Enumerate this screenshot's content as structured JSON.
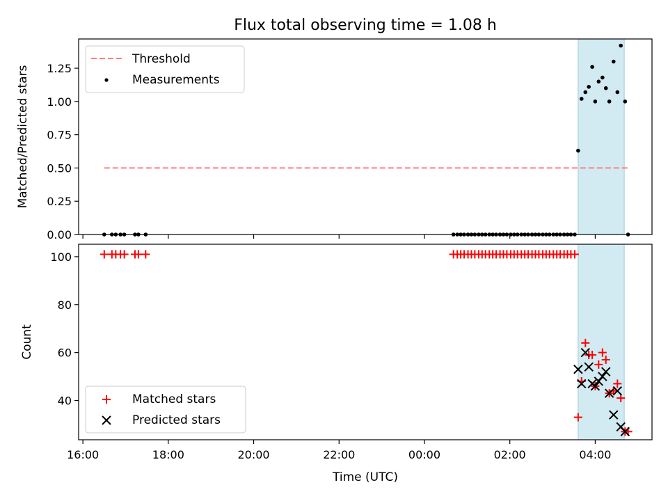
{
  "chart_data": [
    {
      "type": "scatter",
      "title": "Flux total observing time = 1.08 h",
      "ylabel": "Matched/Predicted stars",
      "xlabel": "",
      "x_unit": "hours since 16:00 UTC",
      "xlim": [
        -0.1,
        13.33
      ],
      "ylim": [
        0,
        1.47
      ],
      "yticks": [
        0.0,
        0.25,
        0.5,
        0.75,
        1.0,
        1.25
      ],
      "ytick_labels": [
        "0.00",
        "0.25",
        "0.50",
        "0.75",
        "1.00",
        "1.25"
      ],
      "xticks": [
        0,
        2,
        4,
        6,
        8,
        10,
        12
      ],
      "shaded_region": {
        "x": [
          11.6,
          12.68
        ],
        "color": "#add8e6"
      },
      "threshold": {
        "name": "Threshold",
        "y": 0.5,
        "x": [
          0.5,
          12.8
        ],
        "color": "#ff7f7f"
      },
      "series": [
        {
          "name": "Measurements",
          "color": "#000000",
          "points": [
            [
              0.5,
              0
            ],
            [
              0.68,
              0
            ],
            [
              0.77,
              0
            ],
            [
              0.88,
              0
            ],
            [
              0.97,
              0
            ],
            [
              1.22,
              0
            ],
            [
              1.3,
              0
            ],
            [
              1.47,
              0
            ],
            [
              8.68,
              0
            ],
            [
              8.77,
              0
            ],
            [
              8.85,
              0
            ],
            [
              8.93,
              0
            ],
            [
              9.02,
              0
            ],
            [
              9.1,
              0
            ],
            [
              9.18,
              0
            ],
            [
              9.27,
              0
            ],
            [
              9.35,
              0
            ],
            [
              9.43,
              0
            ],
            [
              9.52,
              0
            ],
            [
              9.6,
              0
            ],
            [
              9.68,
              0
            ],
            [
              9.77,
              0
            ],
            [
              9.85,
              0
            ],
            [
              9.93,
              0
            ],
            [
              10.02,
              0
            ],
            [
              10.1,
              0
            ],
            [
              10.18,
              0
            ],
            [
              10.27,
              0
            ],
            [
              10.35,
              0
            ],
            [
              10.43,
              0
            ],
            [
              10.52,
              0
            ],
            [
              10.6,
              0
            ],
            [
              10.68,
              0
            ],
            [
              10.77,
              0
            ],
            [
              10.85,
              0
            ],
            [
              10.93,
              0
            ],
            [
              11.02,
              0
            ],
            [
              11.1,
              0
            ],
            [
              11.18,
              0
            ],
            [
              11.27,
              0
            ],
            [
              11.35,
              0
            ],
            [
              11.43,
              0
            ],
            [
              11.52,
              0
            ],
            [
              11.6,
              0.63
            ],
            [
              11.68,
              1.02
            ],
            [
              11.77,
              1.07
            ],
            [
              11.85,
              1.11
            ],
            [
              11.93,
              1.26
            ],
            [
              12.0,
              1.0
            ],
            [
              12.08,
              1.15
            ],
            [
              12.17,
              1.18
            ],
            [
              12.25,
              1.1
            ],
            [
              12.33,
              1.0
            ],
            [
              12.43,
              1.3
            ],
            [
              12.52,
              1.07
            ],
            [
              12.6,
              1.42
            ],
            [
              12.7,
              1.0
            ],
            [
              12.77,
              0.0
            ]
          ]
        }
      ],
      "legend": {
        "location": "upper-left",
        "entries": [
          "Threshold",
          "Measurements"
        ]
      }
    },
    {
      "type": "scatter",
      "title": "",
      "xlabel": "Time (UTC)",
      "ylabel": "Count",
      "x_unit": "hours since 16:00 UTC",
      "xlim": [
        -0.1,
        13.33
      ],
      "ylim": [
        23.6,
        105.2
      ],
      "yticks": [
        40,
        60,
        80,
        100
      ],
      "xticks": [
        0,
        2,
        4,
        6,
        8,
        10,
        12
      ],
      "xtick_labels": [
        "16:00",
        "18:00",
        "20:00",
        "22:00",
        "00:00",
        "02:00",
        "04:00"
      ],
      "shaded_region": {
        "x": [
          11.6,
          12.68
        ],
        "color": "#add8e6"
      },
      "series": [
        {
          "name": "Matched stars",
          "marker": "plus",
          "color": "#ff0000",
          "points": [
            [
              0.5,
              101
            ],
            [
              0.68,
              101
            ],
            [
              0.77,
              101
            ],
            [
              0.88,
              101
            ],
            [
              0.97,
              101
            ],
            [
              1.22,
              101
            ],
            [
              1.3,
              101
            ],
            [
              1.47,
              101
            ],
            [
              8.68,
              101
            ],
            [
              8.77,
              101
            ],
            [
              8.85,
              101
            ],
            [
              8.93,
              101
            ],
            [
              9.02,
              101
            ],
            [
              9.1,
              101
            ],
            [
              9.18,
              101
            ],
            [
              9.27,
              101
            ],
            [
              9.35,
              101
            ],
            [
              9.43,
              101
            ],
            [
              9.52,
              101
            ],
            [
              9.6,
              101
            ],
            [
              9.68,
              101
            ],
            [
              9.77,
              101
            ],
            [
              9.85,
              101
            ],
            [
              9.93,
              101
            ],
            [
              10.02,
              101
            ],
            [
              10.1,
              101
            ],
            [
              10.18,
              101
            ],
            [
              10.27,
              101
            ],
            [
              10.35,
              101
            ],
            [
              10.43,
              101
            ],
            [
              10.52,
              101
            ],
            [
              10.6,
              101
            ],
            [
              10.68,
              101
            ],
            [
              10.77,
              101
            ],
            [
              10.85,
              101
            ],
            [
              10.93,
              101
            ],
            [
              11.02,
              101
            ],
            [
              11.1,
              101
            ],
            [
              11.18,
              101
            ],
            [
              11.27,
              101
            ],
            [
              11.35,
              101
            ],
            [
              11.43,
              101
            ],
            [
              11.52,
              101
            ],
            [
              11.6,
              33
            ],
            [
              11.68,
              48
            ],
            [
              11.77,
              64
            ],
            [
              11.85,
              59
            ],
            [
              11.93,
              59
            ],
            [
              12.0,
              46
            ],
            [
              12.08,
              55
            ],
            [
              12.17,
              60
            ],
            [
              12.25,
              57
            ],
            [
              12.33,
              43
            ],
            [
              12.43,
              44
            ],
            [
              12.52,
              47
            ],
            [
              12.6,
              41
            ],
            [
              12.7,
              27
            ],
            [
              12.77,
              27
            ]
          ]
        },
        {
          "name": "Predicted stars",
          "marker": "x",
          "color": "#000000",
          "points": [
            [
              11.6,
              53
            ],
            [
              11.68,
              47
            ],
            [
              11.77,
              60
            ],
            [
              11.85,
              54
            ],
            [
              11.93,
              47
            ],
            [
              12.0,
              46
            ],
            [
              12.08,
              48
            ],
            [
              12.17,
              50
            ],
            [
              12.25,
              52
            ],
            [
              12.33,
              43
            ],
            [
              12.43,
              34
            ],
            [
              12.52,
              44
            ],
            [
              12.6,
              29
            ],
            [
              12.7,
              27
            ]
          ]
        }
      ],
      "legend": {
        "location": "lower-left",
        "entries": [
          "Matched stars",
          "Predicted stars"
        ]
      }
    }
  ]
}
